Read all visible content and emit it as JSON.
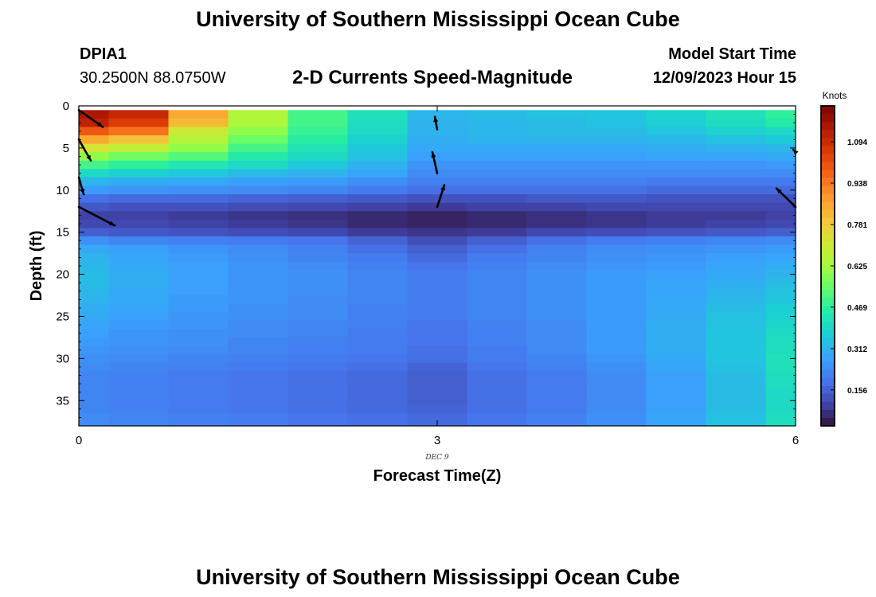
{
  "header": {
    "title": "University of Southern Mississippi Ocean Cube",
    "station_id": "DPIA1",
    "station_coords": "30.2500N  88.0750W",
    "plot_title": "2-D Currents Speed-Magnitude",
    "model_start_label": "Model Start Time",
    "model_start_value": "12/09/2023 Hour 15"
  },
  "footer": {
    "title": "University of Southern Mississippi Ocean Cube"
  },
  "chart_data": {
    "type": "heatmap",
    "title": "2-D Currents Speed-Magnitude",
    "xlabel": "Forecast Time(Z)",
    "ylabel": "Depth (ft)",
    "x_ticks": [
      "0",
      "3",
      "6"
    ],
    "x_date_label": "DEC 9",
    "y_ticks": [
      "0",
      "5",
      "10",
      "15",
      "20",
      "25",
      "30",
      "35"
    ],
    "xlim": [
      0,
      6
    ],
    "ylim": [
      0,
      38
    ],
    "y_inverted": true,
    "colorbar": {
      "unit": "Knots",
      "ticks": [
        "1.094",
        "0.938",
        "0.781",
        "0.625",
        "0.469",
        "0.312",
        "0.156"
      ],
      "tick_values": [
        1.094,
        0.938,
        0.781,
        0.625,
        0.469,
        0.312,
        0.156
      ],
      "range": [
        0.02,
        1.23
      ]
    },
    "columns_x": [
      0,
      0.5,
      1.0,
      1.5,
      2.0,
      2.5,
      3.0,
      3.5,
      4.0,
      4.5,
      5.0,
      5.5,
      6.0
    ],
    "rows": [
      {
        "depth": [
          0.5,
          1.5
        ],
        "values": [
          1.15,
          1.1,
          0.85,
          0.65,
          0.5,
          0.42,
          0.32,
          0.33,
          0.34,
          0.35,
          0.38,
          0.42,
          0.47
        ]
      },
      {
        "depth": [
          1.5,
          2.5
        ],
        "values": [
          1.12,
          1.05,
          0.82,
          0.64,
          0.5,
          0.41,
          0.31,
          0.32,
          0.33,
          0.34,
          0.37,
          0.41,
          0.45
        ]
      },
      {
        "depth": [
          2.5,
          3.5
        ],
        "values": [
          1.0,
          0.95,
          0.7,
          0.6,
          0.48,
          0.4,
          0.31,
          0.32,
          0.33,
          0.33,
          0.35,
          0.38,
          0.4
        ]
      },
      {
        "depth": [
          3.5,
          4.5
        ],
        "values": [
          0.85,
          0.8,
          0.65,
          0.55,
          0.46,
          0.38,
          0.3,
          0.31,
          0.31,
          0.31,
          0.32,
          0.34,
          0.36
        ]
      },
      {
        "depth": [
          4.5,
          5.5
        ],
        "values": [
          0.72,
          0.68,
          0.6,
          0.5,
          0.43,
          0.36,
          0.29,
          0.29,
          0.29,
          0.29,
          0.3,
          0.31,
          0.32
        ]
      },
      {
        "depth": [
          5.5,
          6.5
        ],
        "values": [
          0.6,
          0.56,
          0.52,
          0.45,
          0.4,
          0.34,
          0.27,
          0.27,
          0.27,
          0.27,
          0.28,
          0.28,
          0.29
        ]
      },
      {
        "depth": [
          6.5,
          7.5
        ],
        "values": [
          0.5,
          0.47,
          0.44,
          0.4,
          0.36,
          0.31,
          0.25,
          0.25,
          0.25,
          0.25,
          0.25,
          0.25,
          0.26
        ]
      },
      {
        "depth": [
          7.5,
          8.5
        ],
        "values": [
          0.4,
          0.38,
          0.36,
          0.33,
          0.31,
          0.28,
          0.23,
          0.23,
          0.23,
          0.23,
          0.23,
          0.23,
          0.23
        ]
      },
      {
        "depth": [
          8.5,
          9.5
        ],
        "values": [
          0.32,
          0.3,
          0.29,
          0.27,
          0.26,
          0.24,
          0.21,
          0.21,
          0.21,
          0.21,
          0.2,
          0.2,
          0.2
        ]
      },
      {
        "depth": [
          9.5,
          10.5
        ],
        "values": [
          0.26,
          0.25,
          0.24,
          0.23,
          0.22,
          0.2,
          0.18,
          0.18,
          0.18,
          0.18,
          0.17,
          0.17,
          0.17
        ]
      },
      {
        "depth": [
          10.5,
          11.5
        ],
        "values": [
          0.18,
          0.17,
          0.17,
          0.16,
          0.15,
          0.14,
          0.13,
          0.13,
          0.14,
          0.14,
          0.13,
          0.13,
          0.13
        ]
      },
      {
        "depth": [
          11.5,
          12.5
        ],
        "values": [
          0.14,
          0.13,
          0.13,
          0.12,
          0.11,
          0.1,
          0.09,
          0.1,
          0.1,
          0.11,
          0.11,
          0.11,
          0.11
        ]
      },
      {
        "depth": [
          12.5,
          13.5
        ],
        "values": [
          0.1,
          0.1,
          0.09,
          0.08,
          0.07,
          0.06,
          0.05,
          0.06,
          0.07,
          0.08,
          0.09,
          0.09,
          0.1
        ]
      },
      {
        "depth": [
          13.5,
          14.5
        ],
        "values": [
          0.11,
          0.11,
          0.1,
          0.09,
          0.08,
          0.06,
          0.05,
          0.06,
          0.07,
          0.08,
          0.09,
          0.1,
          0.11
        ]
      },
      {
        "depth": [
          14.5,
          15.5
        ],
        "values": [
          0.15,
          0.14,
          0.13,
          0.12,
          0.11,
          0.09,
          0.08,
          0.09,
          0.11,
          0.12,
          0.13,
          0.14,
          0.15
        ]
      },
      {
        "depth": [
          15.5,
          16.5
        ],
        "values": [
          0.24,
          0.22,
          0.21,
          0.2,
          0.19,
          0.16,
          0.12,
          0.15,
          0.18,
          0.2,
          0.21,
          0.22,
          0.23
        ]
      },
      {
        "depth": [
          16.5,
          17.5
        ],
        "values": [
          0.29,
          0.27,
          0.25,
          0.23,
          0.21,
          0.18,
          0.15,
          0.18,
          0.21,
          0.23,
          0.24,
          0.25,
          0.26
        ]
      },
      {
        "depth": [
          17.5,
          18.5
        ],
        "values": [
          0.31,
          0.28,
          0.26,
          0.24,
          0.22,
          0.2,
          0.17,
          0.2,
          0.22,
          0.24,
          0.25,
          0.27,
          0.28
        ]
      },
      {
        "depth": [
          18.5,
          19.5
        ],
        "values": [
          0.32,
          0.29,
          0.27,
          0.25,
          0.23,
          0.21,
          0.19,
          0.21,
          0.23,
          0.25,
          0.26,
          0.28,
          0.3
        ]
      },
      {
        "depth": [
          19.5,
          20.5
        ],
        "values": [
          0.33,
          0.3,
          0.27,
          0.25,
          0.24,
          0.22,
          0.2,
          0.22,
          0.24,
          0.26,
          0.27,
          0.29,
          0.31
        ]
      },
      {
        "depth": [
          20.5,
          21.5
        ],
        "values": [
          0.33,
          0.3,
          0.27,
          0.25,
          0.24,
          0.22,
          0.2,
          0.22,
          0.24,
          0.26,
          0.28,
          0.3,
          0.33
        ]
      },
      {
        "depth": [
          21.5,
          22.5
        ],
        "values": [
          0.32,
          0.29,
          0.27,
          0.25,
          0.24,
          0.22,
          0.2,
          0.22,
          0.24,
          0.26,
          0.28,
          0.31,
          0.34
        ]
      },
      {
        "depth": [
          22.5,
          23.5
        ],
        "values": [
          0.31,
          0.29,
          0.26,
          0.25,
          0.23,
          0.22,
          0.2,
          0.22,
          0.24,
          0.26,
          0.29,
          0.32,
          0.35
        ]
      },
      {
        "depth": [
          23.5,
          24.5
        ],
        "values": [
          0.3,
          0.28,
          0.26,
          0.24,
          0.23,
          0.21,
          0.2,
          0.22,
          0.24,
          0.26,
          0.29,
          0.33,
          0.37
        ]
      },
      {
        "depth": [
          24.5,
          25.5
        ],
        "values": [
          0.29,
          0.27,
          0.25,
          0.24,
          0.23,
          0.21,
          0.2,
          0.22,
          0.24,
          0.26,
          0.29,
          0.34,
          0.38
        ]
      },
      {
        "depth": [
          25.5,
          26.5
        ],
        "values": [
          0.28,
          0.26,
          0.25,
          0.23,
          0.22,
          0.21,
          0.19,
          0.21,
          0.23,
          0.26,
          0.3,
          0.34,
          0.39
        ]
      },
      {
        "depth": [
          26.5,
          27.5
        ],
        "values": [
          0.27,
          0.25,
          0.24,
          0.23,
          0.22,
          0.2,
          0.19,
          0.21,
          0.23,
          0.26,
          0.3,
          0.35,
          0.4
        ]
      },
      {
        "depth": [
          27.5,
          28.5
        ],
        "values": [
          0.26,
          0.25,
          0.24,
          0.22,
          0.21,
          0.2,
          0.19,
          0.21,
          0.23,
          0.26,
          0.3,
          0.35,
          0.41
        ]
      },
      {
        "depth": [
          28.5,
          29.5
        ],
        "values": [
          0.25,
          0.24,
          0.23,
          0.22,
          0.21,
          0.2,
          0.18,
          0.2,
          0.23,
          0.26,
          0.3,
          0.35,
          0.41
        ]
      },
      {
        "depth": [
          29.5,
          30.5
        ],
        "values": [
          0.24,
          0.23,
          0.22,
          0.21,
          0.2,
          0.19,
          0.18,
          0.2,
          0.22,
          0.25,
          0.29,
          0.35,
          0.42
        ]
      },
      {
        "depth": [
          30.5,
          31.5
        ],
        "values": [
          0.23,
          0.22,
          0.21,
          0.2,
          0.19,
          0.18,
          0.16,
          0.19,
          0.21,
          0.24,
          0.28,
          0.34,
          0.42
        ]
      },
      {
        "depth": [
          31.5,
          32.5
        ],
        "values": [
          0.22,
          0.21,
          0.2,
          0.19,
          0.18,
          0.17,
          0.15,
          0.18,
          0.2,
          0.23,
          0.27,
          0.33,
          0.41
        ]
      },
      {
        "depth": [
          32.5,
          33.5
        ],
        "values": [
          0.22,
          0.21,
          0.2,
          0.19,
          0.18,
          0.17,
          0.15,
          0.18,
          0.2,
          0.23,
          0.27,
          0.33,
          0.41
        ]
      },
      {
        "depth": [
          33.5,
          34.5
        ],
        "values": [
          0.22,
          0.21,
          0.2,
          0.19,
          0.18,
          0.17,
          0.15,
          0.18,
          0.2,
          0.23,
          0.27,
          0.33,
          0.4
        ]
      },
      {
        "depth": [
          34.5,
          35.5
        ],
        "values": [
          0.22,
          0.21,
          0.2,
          0.19,
          0.18,
          0.17,
          0.15,
          0.18,
          0.2,
          0.23,
          0.27,
          0.33,
          0.4
        ]
      },
      {
        "depth": [
          35.5,
          36.5
        ],
        "values": [
          0.22,
          0.21,
          0.2,
          0.19,
          0.18,
          0.17,
          0.16,
          0.18,
          0.2,
          0.23,
          0.27,
          0.33,
          0.4
        ]
      },
      {
        "depth": [
          36.5,
          38.0
        ],
        "values": [
          0.23,
          0.22,
          0.21,
          0.2,
          0.19,
          0.18,
          0.17,
          0.19,
          0.21,
          0.24,
          0.28,
          0.34,
          0.41
        ]
      }
    ],
    "vectors": [
      {
        "time": 0,
        "depth": 0.5,
        "dx": 0.2,
        "dy": 2.0
      },
      {
        "time": 0,
        "depth": 4.0,
        "dx": 0.1,
        "dy": 2.5
      },
      {
        "time": 0,
        "depth": 8.5,
        "dx": 0.04,
        "dy": 2.0
      },
      {
        "time": 0,
        "depth": 12.0,
        "dx": 0.3,
        "dy": 2.2
      },
      {
        "time": 3,
        "depth": 2.8,
        "dx": -0.02,
        "dy": -1.5
      },
      {
        "time": 3,
        "depth": 8.0,
        "dx": -0.04,
        "dy": -2.5
      },
      {
        "time": 3,
        "depth": 12.0,
        "dx": 0.06,
        "dy": -2.6
      },
      {
        "time": 6,
        "depth": 5.5,
        "dx": -0.02,
        "dy": -0.3
      },
      {
        "time": 6,
        "depth": 12.0,
        "dx": -0.16,
        "dy": -2.2
      }
    ]
  }
}
